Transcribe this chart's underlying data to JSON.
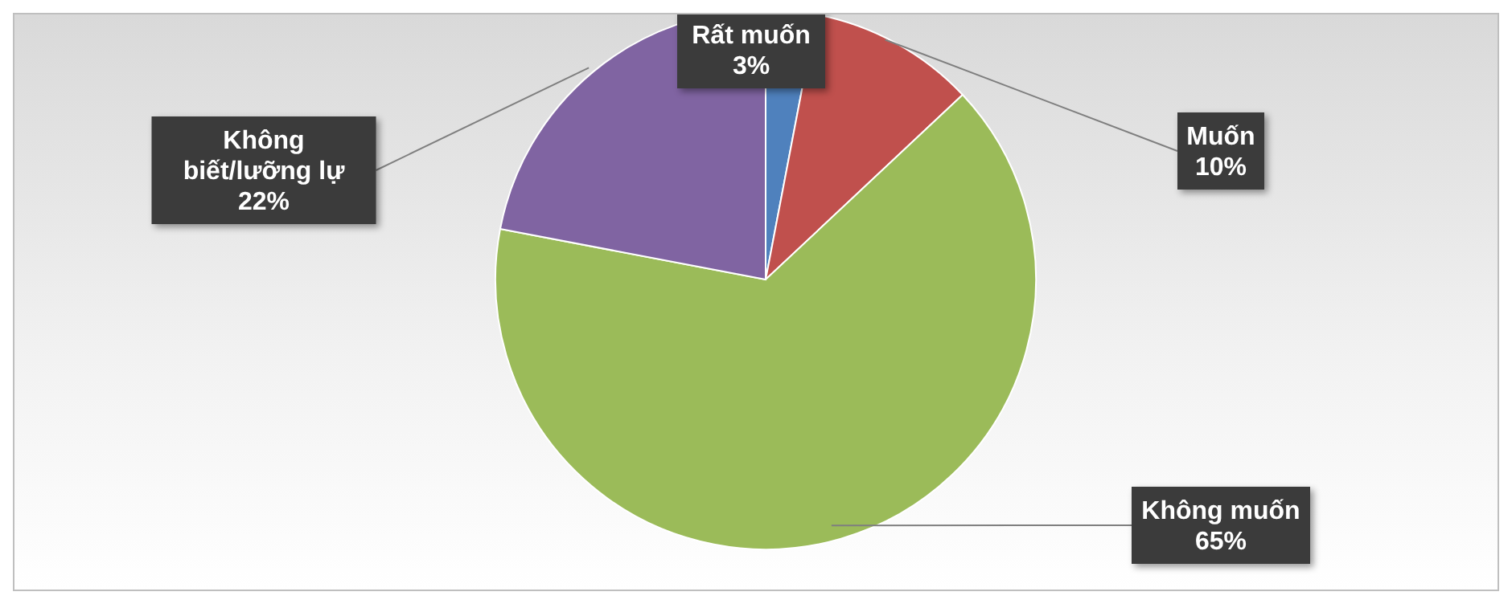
{
  "chart_data": {
    "type": "pie",
    "categories": [
      "Rất muốn",
      "Muốn",
      "Không muốn",
      "Không biết/lưỡng lự"
    ],
    "values": [
      3,
      10,
      65,
      22
    ],
    "colors": [
      "#4f81bd",
      "#c0504d",
      "#9bbb59",
      "#8064a2"
    ],
    "value_labels": [
      "3%",
      "10%",
      "65%",
      "22%"
    ],
    "legend": false
  }
}
